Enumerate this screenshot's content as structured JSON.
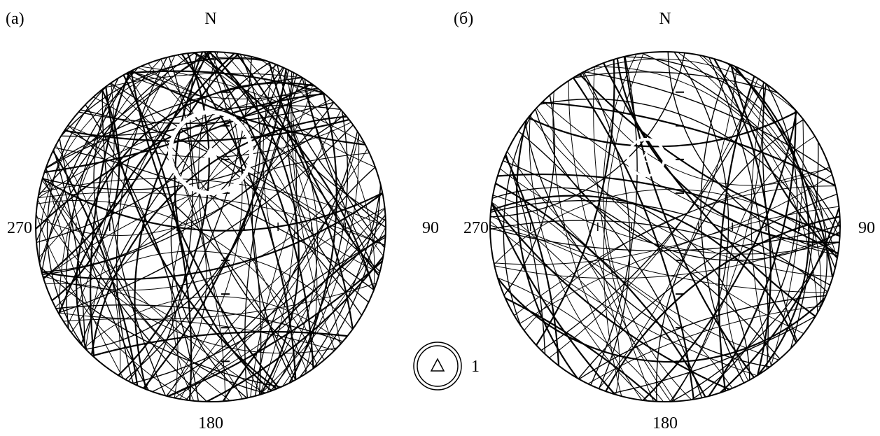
{
  "panels": [
    {
      "id": "a",
      "panel_label": "(a)",
      "north_label": "N",
      "east_label": "90",
      "south_label": "180",
      "west_label": "270",
      "great_circle_count": 140,
      "pole_ring": {
        "shown": true,
        "ring_color": "#ffffff"
      },
      "seed": 7
    },
    {
      "id": "b",
      "panel_label": "(б)",
      "north_label": "N",
      "east_label": "90",
      "south_label": "180",
      "west_label": "270",
      "great_circle_count": 95,
      "pole_ring": {
        "shown": true,
        "ring_color": "#ffffff"
      },
      "seed": 23
    }
  ],
  "legend": {
    "label": "1",
    "symbol": "triangle-in-double-circle-icon"
  },
  "colors": {
    "line": "#000000",
    "background": "#ffffff",
    "ring": "#ffffff"
  }
}
